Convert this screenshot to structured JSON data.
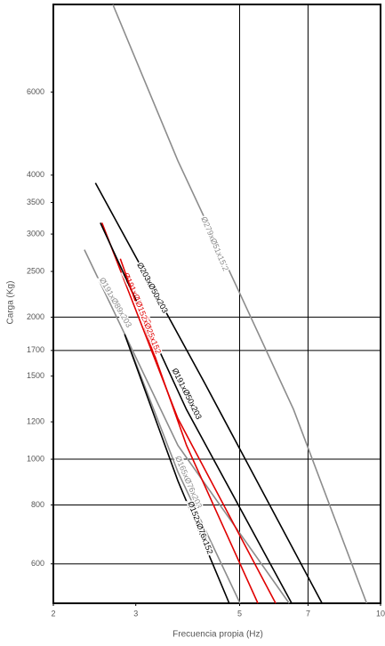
{
  "chart_data": {
    "type": "line",
    "x_label": "Frecuencia propia (Hz)",
    "y_label": "Carga (Kg)",
    "xscale": "log",
    "yscale": "log",
    "xlim": [
      2,
      10
    ],
    "ylim": [
      495,
      9200
    ],
    "xticks": [
      2,
      3,
      5,
      7,
      10
    ],
    "yticks": [
      600,
      800,
      1000,
      1200,
      1500,
      1700,
      2000,
      2500,
      3000,
      3500,
      4000,
      6000
    ],
    "xgrid": [
      5,
      7
    ],
    "ygrid": [
      600,
      800,
      1000,
      1700,
      2000
    ],
    "series": [
      {
        "name": "Ø279xØ51x15.2",
        "color": "#8c8c8c",
        "x": [
          2.68,
          3.69,
          5.01,
          6.52,
          9.34
        ],
        "values": [
          9200,
          4290,
          2240,
          1274,
          495
        ]
      },
      {
        "name": "Ø191xØ89x203",
        "color": "#8c8c8c",
        "x": [
          2.33,
          3.69,
          6.38
        ],
        "values": [
          2780,
          1070,
          495
        ]
      },
      {
        "name": "Ø203xØ50x203",
        "color": "#000000",
        "x": [
          2.46,
          4.21,
          7.5
        ],
        "values": [
          3850,
          1450,
          495
        ]
      },
      {
        "name": "Ø191xØ50x203",
        "color": "#e00000",
        "x": [
          2.54,
          3.69,
          5.97
        ],
        "values": [
          3170,
          1220,
          495
        ]
      },
      {
        "name": "Ø191xØ50x203",
        "color": "#000000",
        "x": [
          2.52,
          3.85,
          6.46
        ],
        "values": [
          3170,
          1274,
          495
        ]
      },
      {
        "name": "Ø152xØ25x152",
        "color": "#e00000",
        "x": [
          2.78,
          3.85,
          5.47
        ],
        "values": [
          2660,
          1070,
          495
        ]
      },
      {
        "name": "Ø165xØ76x203",
        "color": "#8c8c8c",
        "x": [
          2.84,
          3.69,
          5.01
        ],
        "values": [
          1840,
          940,
          495
        ]
      },
      {
        "name": "Ø152xØ76x152",
        "color": "#000000",
        "x": [
          2.84,
          3.69,
          4.75
        ],
        "values": [
          1840,
          900,
          495
        ]
      }
    ]
  }
}
